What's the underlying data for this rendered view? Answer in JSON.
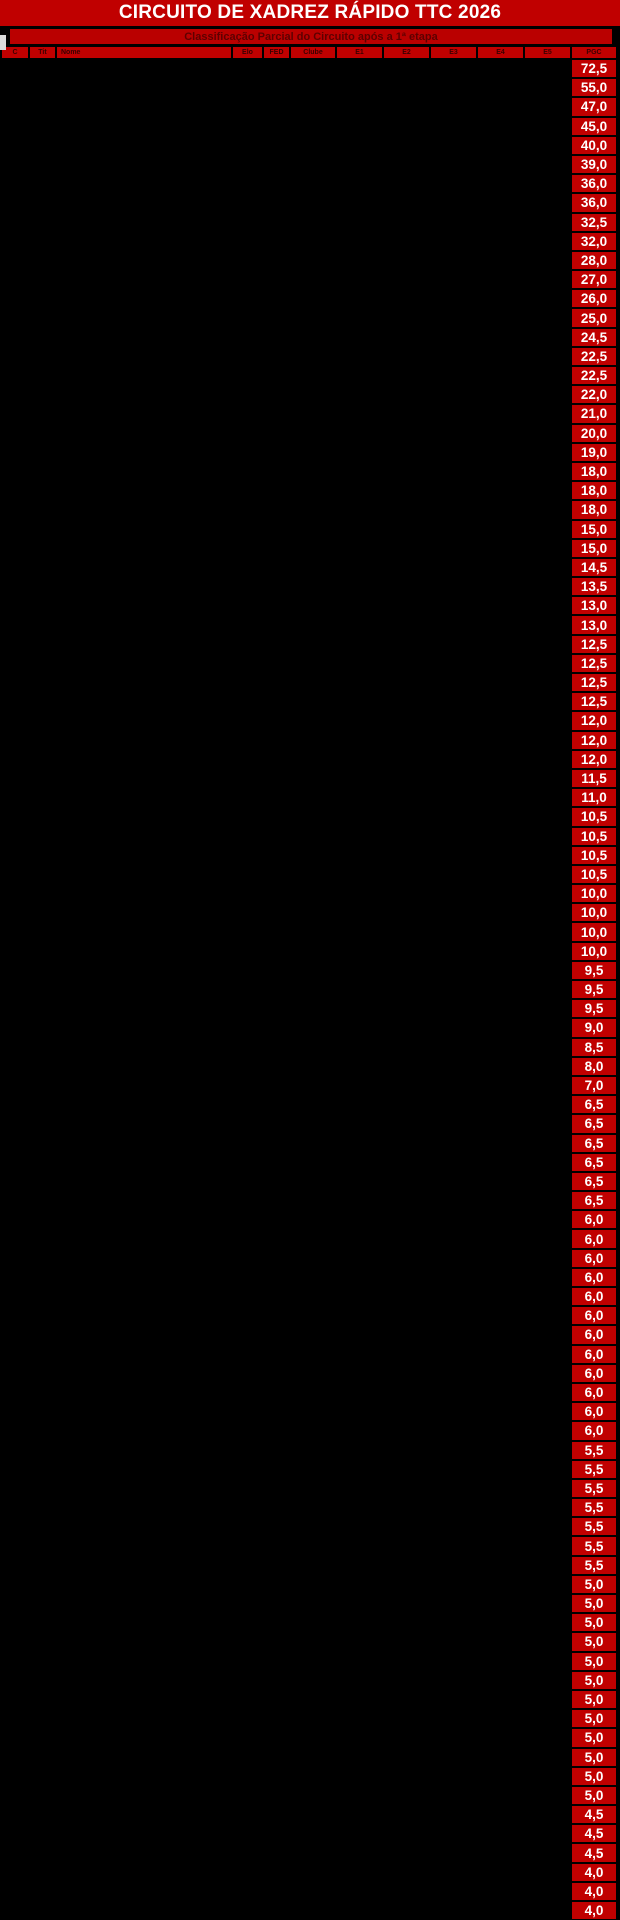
{
  "title": "CIRCUITO DE XADREZ RÁPIDO TTC 2026",
  "subtitle": "Classificação Parcial do Circuito após a 1ª etapa",
  "colors": {
    "accent_red": "#c00000",
    "value_text": "#ffffff",
    "header_text": "#3a0000",
    "background": "#000000",
    "notch": "#dcdcdc"
  },
  "table": {
    "columns": [
      "C",
      "Tit",
      "Nome",
      "Elo",
      "FED",
      "Clube",
      "E1",
      "E2",
      "E3",
      "E4",
      "E5",
      "PGC"
    ],
    "pgc_values": [
      "72,5",
      "55,0",
      "47,0",
      "45,0",
      "40,0",
      "39,0",
      "36,0",
      "36,0",
      "32,5",
      "32,0",
      "28,0",
      "27,0",
      "26,0",
      "25,0",
      "24,5",
      "22,5",
      "22,5",
      "22,0",
      "21,0",
      "20,0",
      "19,0",
      "18,0",
      "18,0",
      "18,0",
      "15,0",
      "15,0",
      "14,5",
      "13,5",
      "13,0",
      "13,0",
      "12,5",
      "12,5",
      "12,5",
      "12,5",
      "12,0",
      "12,0",
      "12,0",
      "11,5",
      "11,0",
      "10,5",
      "10,5",
      "10,5",
      "10,5",
      "10,0",
      "10,0",
      "10,0",
      "10,0",
      "9,5",
      "9,5",
      "9,5",
      "9,0",
      "8,5",
      "8,0",
      "7,0",
      "6,5",
      "6,5",
      "6,5",
      "6,5",
      "6,5",
      "6,5",
      "6,0",
      "6,0",
      "6,0",
      "6,0",
      "6,0",
      "6,0",
      "6,0",
      "6,0",
      "6,0",
      "6,0",
      "6,0",
      "6,0",
      "5,5",
      "5,5",
      "5,5",
      "5,5",
      "5,5",
      "5,5",
      "5,5",
      "5,0",
      "5,0",
      "5,0",
      "5,0",
      "5,0",
      "5,0",
      "5,0",
      "5,0",
      "5,0",
      "5,0",
      "5,0",
      "5,0",
      "4,5",
      "4,5",
      "4,5",
      "4,0",
      "4,0",
      "4,0"
    ]
  }
}
